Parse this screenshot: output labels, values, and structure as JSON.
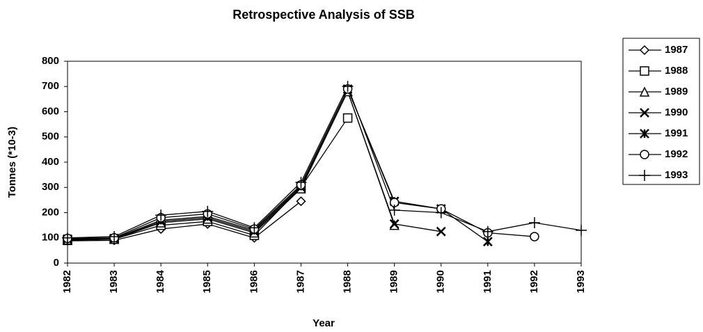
{
  "chart_data": {
    "type": "line",
    "title": "Retrospective Analysis of SSB",
    "xlabel": "Year",
    "ylabel": "Tonnes (*10-3)",
    "x": [
      1982,
      1983,
      1984,
      1985,
      1986,
      1987,
      1988,
      1989,
      1990,
      1991,
      1992,
      1993
    ],
    "xlim": [
      1982,
      1993
    ],
    "xticks": [
      1982,
      1983,
      1984,
      1985,
      1986,
      1987,
      1988,
      1989,
      1990,
      1991,
      1992,
      1993
    ],
    "ylim": [
      0,
      800
    ],
    "yticks": [
      0,
      100,
      200,
      300,
      400,
      500,
      600,
      700,
      800
    ],
    "legend": "right",
    "series": [
      {
        "name": "1987",
        "color": "#000000",
        "marker": "diamond",
        "values": [
          88,
          90,
          135,
          155,
          100,
          245,
          null,
          null,
          null,
          null,
          null,
          null
        ]
      },
      {
        "name": "1988",
        "color": "#000000",
        "marker": "square",
        "values": [
          90,
          95,
          150,
          165,
          110,
          300,
          575,
          null,
          null,
          null,
          null,
          null
        ]
      },
      {
        "name": "1989",
        "color": "#000000",
        "marker": "triangle",
        "values": [
          92,
          95,
          160,
          175,
          120,
          295,
          680,
          150,
          null,
          null,
          null,
          null
        ]
      },
      {
        "name": "1990",
        "color": "#000000",
        "marker": "cross",
        "values": [
          95,
          95,
          165,
          180,
          125,
          300,
          680,
          155,
          125,
          null,
          null,
          null
        ]
      },
      {
        "name": "1991",
        "color": "#000000",
        "marker": "asterisk",
        "values": [
          95,
          98,
          170,
          185,
          130,
          305,
          690,
          245,
          215,
          85,
          null,
          null
        ]
      },
      {
        "name": "1992",
        "color": "#000000",
        "marker": "circle",
        "values": [
          98,
          100,
          180,
          195,
          135,
          310,
          690,
          240,
          215,
          120,
          105,
          null
        ]
      },
      {
        "name": "1993",
        "color": "#000000",
        "marker": "plus",
        "values": [
          100,
          105,
          190,
          205,
          140,
          320,
          700,
          210,
          200,
          125,
          160,
          130
        ]
      }
    ]
  }
}
